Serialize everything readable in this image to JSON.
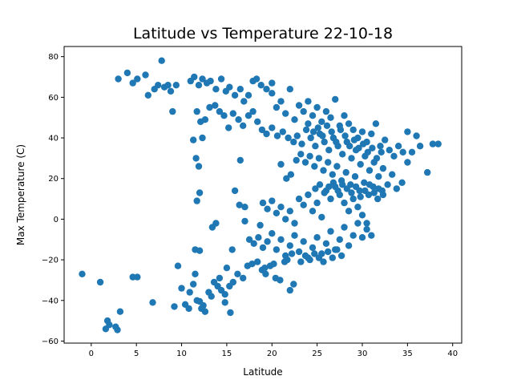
{
  "chart_data": {
    "type": "scatter",
    "title": "Latitude vs Temperature 22-10-18",
    "xlabel": "Latitude",
    "ylabel": "Max Temperature (C)",
    "xlim": [
      -3,
      41
    ],
    "ylim": [
      -61,
      85
    ],
    "xticks": [
      0,
      5,
      10,
      15,
      20,
      25,
      30,
      35,
      40
    ],
    "yticks": [
      -60,
      -40,
      -20,
      0,
      20,
      40,
      60,
      80
    ],
    "grid": false,
    "marker_color": "#1f77b4",
    "series": [
      {
        "points": [
          [
            -1.0,
            -27.0
          ],
          [
            1.0,
            -31.0
          ],
          [
            1.6,
            -54.0
          ],
          [
            1.8,
            -50.0
          ],
          [
            2.0,
            -52.0
          ],
          [
            2.7,
            -53.0
          ],
          [
            2.9,
            -54.5
          ],
          [
            3.2,
            -45.5
          ],
          [
            3.0,
            69.0
          ],
          [
            4.0,
            72.0
          ],
          [
            4.6,
            67.0
          ],
          [
            5.1,
            69.0
          ],
          [
            6.0,
            71.0
          ],
          [
            6.3,
            61.0
          ],
          [
            7.0,
            64.0
          ],
          [
            7.4,
            66.0
          ],
          [
            7.8,
            78.0
          ],
          [
            8.1,
            65.0
          ],
          [
            8.5,
            66.0
          ],
          [
            8.8,
            63.0
          ],
          [
            9.0,
            53.0
          ],
          [
            9.4,
            66.0
          ],
          [
            4.6,
            -28.5
          ],
          [
            5.1,
            -28.5
          ],
          [
            6.8,
            -41.0
          ],
          [
            9.2,
            -43.0
          ],
          [
            9.6,
            -23.0
          ],
          [
            10.0,
            -34.0
          ],
          [
            10.4,
            -42.0
          ],
          [
            10.8,
            -44.0
          ],
          [
            10.9,
            -36.0
          ],
          [
            11.3,
            -32.0
          ],
          [
            11.7,
            -40.0
          ],
          [
            12.2,
            -44.0
          ],
          [
            12.6,
            -45.5
          ],
          [
            13.0,
            -36.0
          ],
          [
            13.3,
            -38.0
          ],
          [
            13.6,
            -31.0
          ],
          [
            14.0,
            -33.0
          ],
          [
            14.4,
            -35.0
          ],
          [
            14.8,
            -37.0
          ],
          [
            15.3,
            -33.0
          ],
          [
            15.7,
            -31.0
          ],
          [
            16.2,
            -27.0
          ],
          [
            16.8,
            -29.0
          ],
          [
            17.3,
            -23.0
          ],
          [
            17.8,
            -22.0
          ],
          [
            18.4,
            -21.0
          ],
          [
            18.9,
            -25.0
          ],
          [
            19.3,
            -27.0
          ],
          [
            19.8,
            -23.0
          ],
          [
            20.4,
            -29.0
          ],
          [
            20.9,
            -30.0
          ],
          [
            21.4,
            -21.0
          ],
          [
            22.0,
            -35.0
          ],
          [
            22.4,
            -32.0
          ],
          [
            11.5,
            -27.0
          ],
          [
            12.0,
            -40.5
          ],
          [
            12.4,
            -42.5
          ],
          [
            13.8,
            -2.0
          ],
          [
            15.6,
            -15.0
          ],
          [
            15.9,
            14.0
          ],
          [
            16.4,
            7.0
          ],
          [
            17.0,
            6.0
          ],
          [
            11.0,
            68.0
          ],
          [
            11.4,
            70.0
          ],
          [
            11.9,
            66.0
          ],
          [
            12.3,
            69.0
          ],
          [
            12.8,
            67.0
          ],
          [
            13.2,
            68.0
          ],
          [
            13.8,
            64.0
          ],
          [
            14.4,
            69.0
          ],
          [
            14.9,
            63.0
          ],
          [
            15.3,
            65.0
          ],
          [
            15.9,
            61.0
          ],
          [
            16.5,
            64.0
          ],
          [
            16.9,
            58.0
          ],
          [
            17.4,
            61.0
          ],
          [
            17.9,
            68.0
          ],
          [
            18.3,
            69.0
          ],
          [
            18.8,
            66.0
          ],
          [
            19.4,
            64.0
          ],
          [
            20.0,
            67.0
          ],
          [
            11.7,
            53.0
          ],
          [
            12.1,
            48.0
          ],
          [
            12.6,
            49.0
          ],
          [
            13.1,
            55.0
          ],
          [
            13.7,
            56.0
          ],
          [
            14.2,
            53.0
          ],
          [
            14.7,
            51.0
          ],
          [
            15.2,
            45.0
          ],
          [
            15.7,
            52.0
          ],
          [
            16.3,
            49.0
          ],
          [
            16.8,
            46.0
          ],
          [
            17.4,
            51.0
          ],
          [
            17.9,
            53.0
          ],
          [
            18.4,
            48.0
          ],
          [
            18.9,
            44.0
          ],
          [
            19.4,
            42.0
          ],
          [
            20.0,
            45.0
          ],
          [
            20.6,
            41.0
          ],
          [
            21.2,
            43.0
          ],
          [
            21.8,
            40.0
          ],
          [
            22.4,
            38.0
          ],
          [
            11.3,
            39.0
          ],
          [
            11.6,
            30.0
          ],
          [
            11.9,
            26.0
          ],
          [
            12.3,
            40.0
          ],
          [
            16.5,
            29.0
          ],
          [
            11.7,
            9.0
          ],
          [
            12.0,
            13.0
          ],
          [
            13.4,
            -4.0
          ],
          [
            11.5,
            -15.0
          ],
          [
            12.0,
            -15.5
          ],
          [
            20.0,
            62.0
          ],
          [
            20.5,
            55.0
          ],
          [
            21.0,
            58.0
          ],
          [
            21.5,
            52.0
          ],
          [
            22.0,
            64.0
          ],
          [
            22.5,
            49.0
          ],
          [
            23.0,
            56.0
          ],
          [
            23.5,
            53.0
          ],
          [
            24.0,
            58.0
          ],
          [
            24.5,
            51.0
          ],
          [
            25.0,
            55.0
          ],
          [
            25.5,
            48.0
          ],
          [
            26.0,
            53.0
          ],
          [
            26.5,
            50.0
          ],
          [
            27.0,
            59.0
          ],
          [
            27.5,
            46.0
          ],
          [
            28.0,
            51.0
          ],
          [
            28.5,
            47.0
          ],
          [
            29.0,
            44.0
          ],
          [
            29.5,
            40.0
          ],
          [
            30.0,
            43.0
          ],
          [
            30.5,
            38.0
          ],
          [
            31.0,
            42.0
          ],
          [
            31.5,
            47.0
          ],
          [
            32.0,
            36.0
          ],
          [
            32.5,
            39.0
          ],
          [
            33.0,
            34.0
          ],
          [
            33.5,
            31.0
          ],
          [
            34.0,
            36.0
          ],
          [
            34.5,
            33.0
          ],
          [
            35.0,
            43.0
          ],
          [
            35.5,
            33.0
          ],
          [
            36.0,
            41.0
          ],
          [
            36.4,
            36.0
          ],
          [
            37.2,
            23.0
          ],
          [
            37.8,
            37.0
          ],
          [
            38.4,
            37.0
          ],
          [
            22.8,
            41.0
          ],
          [
            23.3,
            37.0
          ],
          [
            23.8,
            44.0
          ],
          [
            24.3,
            40.0
          ],
          [
            24.8,
            36.0
          ],
          [
            25.3,
            42.0
          ],
          [
            25.8,
            38.0
          ],
          [
            26.3,
            34.0
          ],
          [
            26.8,
            40.0
          ],
          [
            27.3,
            36.0
          ],
          [
            27.8,
            32.0
          ],
          [
            28.3,
            38.0
          ],
          [
            28.8,
            30.0
          ],
          [
            29.3,
            34.0
          ],
          [
            29.8,
            27.0
          ],
          [
            30.3,
            31.0
          ],
          [
            30.8,
            24.0
          ],
          [
            31.3,
            28.0
          ],
          [
            31.8,
            21.0
          ],
          [
            32.3,
            25.0
          ],
          [
            32.8,
            17.0
          ],
          [
            33.3,
            22.0
          ],
          [
            33.8,
            15.0
          ],
          [
            34.4,
            18.0
          ],
          [
            35.0,
            28.0
          ],
          [
            21.0,
            27.0
          ],
          [
            21.6,
            20.0
          ],
          [
            22.1,
            22.0
          ],
          [
            22.7,
            29.0
          ],
          [
            23.2,
            32.0
          ],
          [
            23.7,
            28.0
          ],
          [
            24.2,
            31.0
          ],
          [
            24.7,
            26.0
          ],
          [
            25.2,
            30.0
          ],
          [
            25.7,
            24.0
          ],
          [
            26.2,
            28.0
          ],
          [
            26.7,
            22.0
          ],
          [
            27.2,
            26.0
          ],
          [
            27.7,
            19.0
          ],
          [
            28.2,
            23.0
          ],
          [
            28.7,
            17.0
          ],
          [
            29.2,
            21.0
          ],
          [
            29.7,
            14.0
          ],
          [
            30.2,
            18.0
          ],
          [
            30.7,
            12.0
          ],
          [
            31.2,
            16.0
          ],
          [
            31.7,
            10.0
          ],
          [
            32.2,
            14.0
          ],
          [
            24.0,
            47.0
          ],
          [
            24.6,
            43.0
          ],
          [
            25.1,
            45.0
          ],
          [
            25.6,
            41.0
          ],
          [
            26.1,
            46.0
          ],
          [
            26.6,
            43.0
          ],
          [
            27.1,
            38.0
          ],
          [
            27.6,
            44.0
          ],
          [
            28.1,
            41.0
          ],
          [
            28.6,
            36.0
          ],
          [
            29.1,
            39.0
          ],
          [
            29.6,
            35.0
          ],
          [
            30.1,
            37.0
          ],
          [
            30.6,
            33.0
          ],
          [
            31.1,
            35.0
          ],
          [
            31.6,
            30.0
          ],
          [
            32.1,
            33.0
          ],
          [
            19.0,
            8.0
          ],
          [
            19.5,
            5.0
          ],
          [
            20.0,
            9.0
          ],
          [
            20.5,
            3.0
          ],
          [
            21.0,
            6.0
          ],
          [
            21.5,
            0.0
          ],
          [
            22.0,
            4.0
          ],
          [
            22.5,
            -2.0
          ],
          [
            23.0,
            10.0
          ],
          [
            23.5,
            7.0
          ],
          [
            24.0,
            12.0
          ],
          [
            24.5,
            4.0
          ],
          [
            25.0,
            8.0
          ],
          [
            25.5,
            1.0
          ],
          [
            26.0,
            14.0
          ],
          [
            26.5,
            10.0
          ],
          [
            27.0,
            16.0
          ],
          [
            27.5,
            12.0
          ],
          [
            28.0,
            8.0
          ],
          [
            28.5,
            4.0
          ],
          [
            29.0,
            10.0
          ],
          [
            29.5,
            6.0
          ],
          [
            30.0,
            2.0
          ],
          [
            30.5,
            -2.0
          ],
          [
            18.0,
            -12.0
          ],
          [
            18.5,
            -9.0
          ],
          [
            19.0,
            -14.0
          ],
          [
            19.5,
            -11.0
          ],
          [
            20.0,
            -7.0
          ],
          [
            20.5,
            -15.0
          ],
          [
            21.0,
            -10.0
          ],
          [
            21.5,
            -18.0
          ],
          [
            22.0,
            -13.0
          ],
          [
            22.5,
            -8.0
          ],
          [
            23.0,
            -16.0
          ],
          [
            23.5,
            -11.0
          ],
          [
            24.0,
            -19.0
          ],
          [
            24.5,
            -14.0
          ],
          [
            25.0,
            -9.0
          ],
          [
            25.5,
            -17.0
          ],
          [
            26.0,
            -12.0
          ],
          [
            26.5,
            -6.0
          ],
          [
            27.0,
            -15.0
          ],
          [
            27.5,
            -10.0
          ],
          [
            28.0,
            -4.0
          ],
          [
            28.5,
            -13.0
          ],
          [
            29.0,
            -8.0
          ],
          [
            29.5,
            -2.0
          ],
          [
            30.0,
            -9.0
          ],
          [
            30.5,
            -5.0
          ],
          [
            31.0,
            -8.0
          ],
          [
            18.7,
            -3.0
          ],
          [
            19.2,
            -24.0
          ],
          [
            20.2,
            -22.0
          ],
          [
            21.7,
            -20.0
          ],
          [
            22.2,
            -17.0
          ],
          [
            23.2,
            -21.0
          ],
          [
            23.7,
            -18.0
          ],
          [
            24.2,
            -20.0
          ],
          [
            24.7,
            -17.0
          ],
          [
            25.2,
            -19.0
          ],
          [
            25.7,
            -21.0
          ],
          [
            26.2,
            -16.0
          ],
          [
            26.7,
            -19.0
          ],
          [
            27.2,
            -15.0
          ],
          [
            27.7,
            -18.0
          ],
          [
            17.5,
            -10.0
          ],
          [
            17.0,
            -1.0
          ],
          [
            14.2,
            -29.0
          ],
          [
            14.8,
            -41.0
          ],
          [
            15.4,
            -46.0
          ],
          [
            15.0,
            -24.0
          ],
          [
            24.8,
            15.0
          ],
          [
            25.3,
            17.0
          ],
          [
            25.8,
            13.0
          ],
          [
            26.3,
            16.0
          ],
          [
            26.8,
            18.0
          ],
          [
            27.3,
            14.0
          ],
          [
            27.8,
            17.0
          ],
          [
            28.3,
            15.0
          ],
          [
            28.8,
            13.0
          ],
          [
            29.3,
            16.0
          ],
          [
            29.8,
            11.0
          ],
          [
            30.3,
            14.0
          ],
          [
            30.8,
            17.0
          ],
          [
            31.3,
            13.0
          ],
          [
            31.8,
            15.0
          ],
          [
            32.3,
            12.0
          ]
        ]
      }
    ]
  }
}
